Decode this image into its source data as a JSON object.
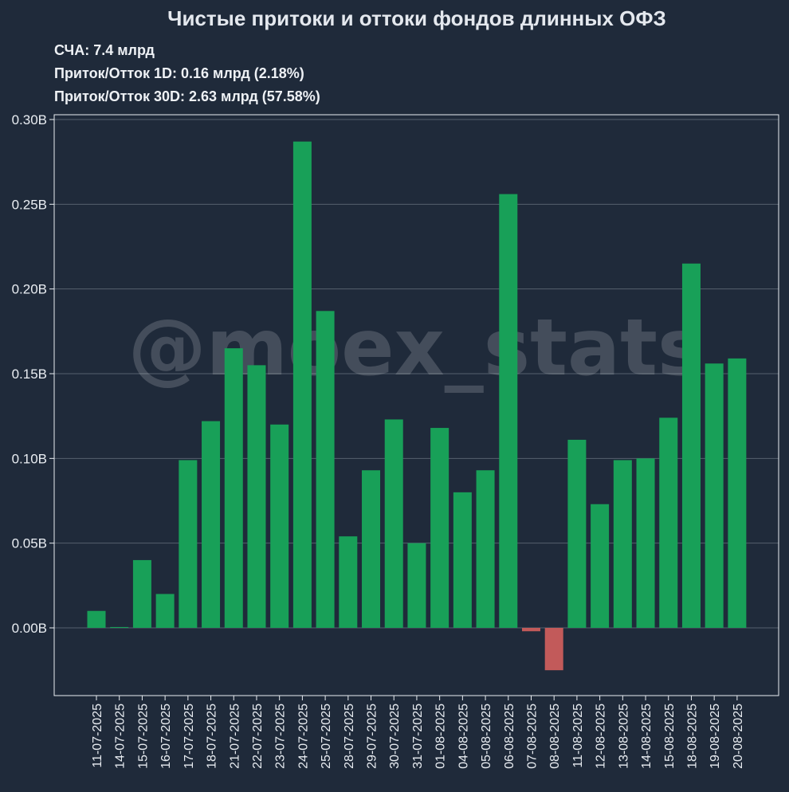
{
  "header": {
    "title": "Чистые притоки и оттоки фондов длинных ОФЗ",
    "stats": [
      "СЧА: 7.4 млрд",
      "Приток/Отток 1D: 0.16 млрд (2.18%)",
      "Приток/Отток 30D: 2.63 млрд (57.58%)"
    ]
  },
  "watermark": "@moex_stats",
  "colors": {
    "background": "#1f2a3a",
    "positive": "#18a058",
    "negative": "#c25a5a",
    "grid": "#55606e",
    "axis": "#e9edf2"
  },
  "chart_data": {
    "type": "bar",
    "title": "Чистые притоки и оттоки фондов длинных ОФЗ",
    "xlabel": "",
    "ylabel": "",
    "ylim": [
      -0.04,
      0.302
    ],
    "yticks": [
      0.0,
      0.05,
      0.1,
      0.15,
      0.2,
      0.25,
      0.3
    ],
    "ytick_labels": [
      "0.00B",
      "0.05B",
      "0.10B",
      "0.15B",
      "0.20B",
      "0.25B",
      "0.30B"
    ],
    "grid": "horizontal",
    "categories": [
      "11-07-2025",
      "14-07-2025",
      "15-07-2025",
      "16-07-2025",
      "17-07-2025",
      "18-07-2025",
      "21-07-2025",
      "22-07-2025",
      "23-07-2025",
      "24-07-2025",
      "25-07-2025",
      "28-07-2025",
      "29-07-2025",
      "30-07-2025",
      "31-07-2025",
      "01-08-2025",
      "04-08-2025",
      "05-08-2025",
      "06-08-2025",
      "07-08-2025",
      "08-08-2025",
      "11-08-2025",
      "12-08-2025",
      "13-08-2025",
      "14-08-2025",
      "15-08-2025",
      "18-08-2025",
      "19-08-2025",
      "20-08-2025"
    ],
    "values": [
      0.01,
      0.0005,
      0.04,
      0.02,
      0.099,
      0.122,
      0.165,
      0.155,
      0.12,
      0.287,
      0.187,
      0.054,
      0.093,
      0.123,
      0.05,
      0.118,
      0.08,
      0.093,
      0.256,
      -0.002,
      -0.025,
      0.111,
      0.073,
      0.099,
      0.1,
      0.124,
      0.215,
      0.156,
      0.159
    ]
  }
}
